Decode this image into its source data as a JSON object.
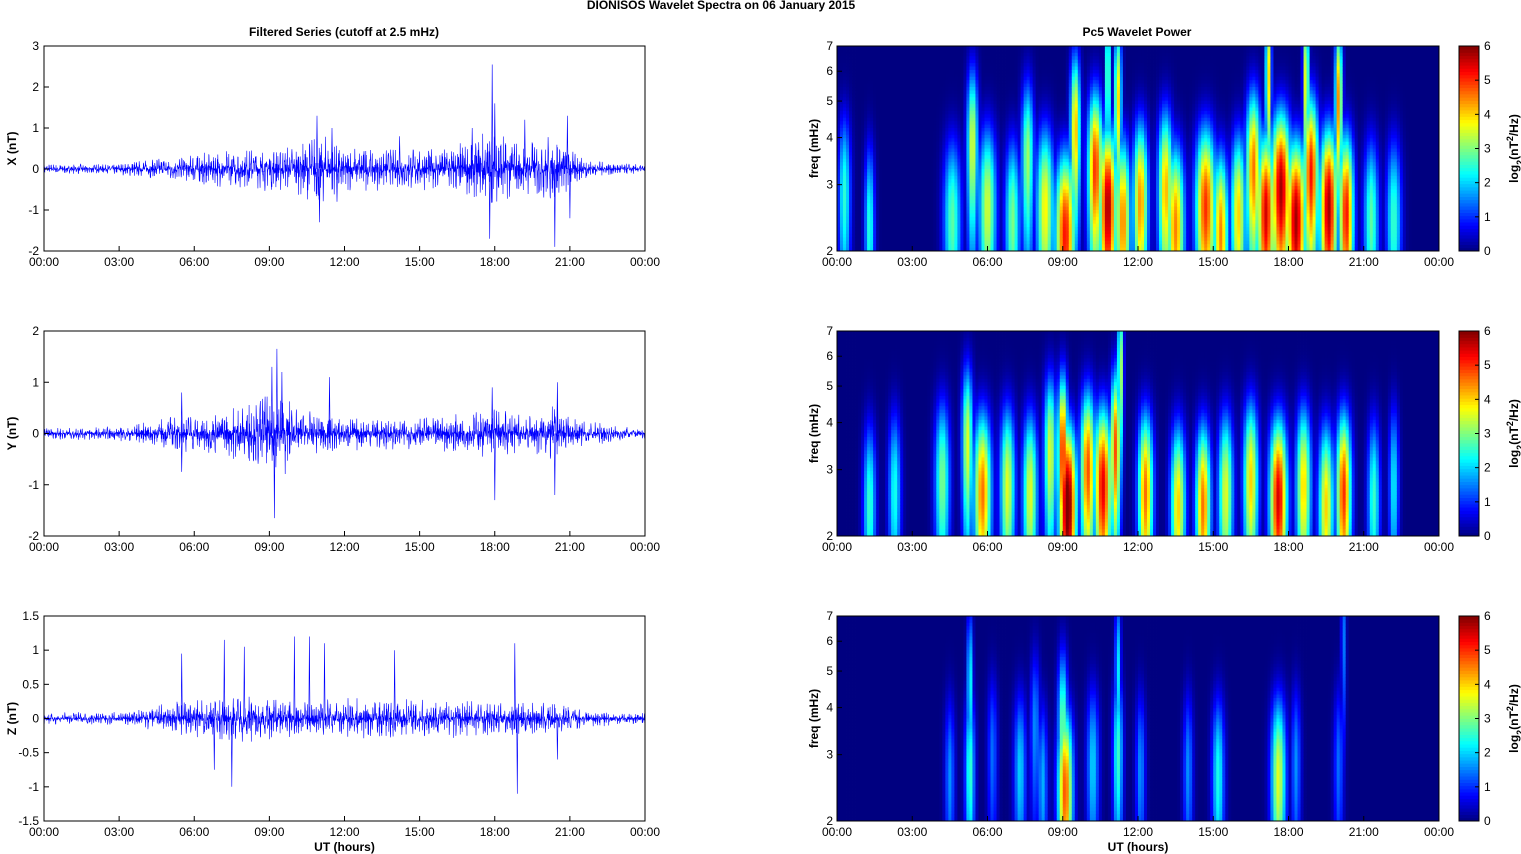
{
  "figure": {
    "title": "DIONISOS Wavelet Spectra on 06 January   2015"
  },
  "panel_titles": {
    "left": "Filtered Series (cutoff at 2.5 mHz)",
    "right": "Pc5 Wavelet Power"
  },
  "colors": {
    "trace": "#0000ff",
    "background_map": "#00008f"
  },
  "chart_data": [
    {
      "type": "line",
      "name": "x-series",
      "ylabel": "X (nT)",
      "xlabel": "",
      "ylim": [
        -2,
        3
      ],
      "yticks": [
        "-2",
        "-1",
        "0",
        "1",
        "2",
        "3"
      ],
      "xticks": [
        "00:00",
        "03:00",
        "06:00",
        "09:00",
        "12:00",
        "15:00",
        "18:00",
        "21:00",
        "00:00"
      ],
      "xlim_hours": [
        0,
        24
      ],
      "envelope": [
        [
          0,
          0.12
        ],
        [
          3,
          0.14
        ],
        [
          4,
          0.25
        ],
        [
          6,
          0.4
        ],
        [
          8,
          0.5
        ],
        [
          10,
          0.6
        ],
        [
          11,
          0.9
        ],
        [
          12,
          0.6
        ],
        [
          14,
          0.5
        ],
        [
          16,
          0.55
        ],
        [
          17,
          0.8
        ],
        [
          18,
          1.1
        ],
        [
          19,
          0.7
        ],
        [
          20.5,
          0.9
        ],
        [
          21,
          0.5
        ],
        [
          22,
          0.2
        ],
        [
          24,
          0.1
        ]
      ],
      "spikes": [
        [
          10.9,
          1.3
        ],
        [
          11.0,
          -1.3
        ],
        [
          11.5,
          1.0
        ],
        [
          11.7,
          -0.8
        ],
        [
          14.2,
          0.8
        ],
        [
          17.1,
          1.0
        ],
        [
          17.9,
          2.55
        ],
        [
          17.8,
          -1.7
        ],
        [
          18.0,
          1.6
        ],
        [
          19.2,
          1.2
        ],
        [
          20.4,
          -1.9
        ],
        [
          20.9,
          1.3
        ],
        [
          21.0,
          -1.2
        ]
      ]
    },
    {
      "type": "line",
      "name": "y-series",
      "ylabel": "Y (nT)",
      "xlabel": "",
      "ylim": [
        -2,
        2
      ],
      "yticks": [
        "-2",
        "-1",
        "0",
        "1",
        "2"
      ],
      "xticks": [
        "00:00",
        "03:00",
        "06:00",
        "09:00",
        "12:00",
        "15:00",
        "18:00",
        "21:00",
        "00:00"
      ],
      "xlim_hours": [
        0,
        24
      ],
      "envelope": [
        [
          0,
          0.12
        ],
        [
          3,
          0.15
        ],
        [
          4,
          0.22
        ],
        [
          5,
          0.35
        ],
        [
          7,
          0.45
        ],
        [
          8.5,
          0.7
        ],
        [
          9.3,
          1.1
        ],
        [
          10,
          0.5
        ],
        [
          12,
          0.35
        ],
        [
          15,
          0.32
        ],
        [
          17,
          0.4
        ],
        [
          18,
          0.55
        ],
        [
          19,
          0.4
        ],
        [
          20.5,
          0.6
        ],
        [
          21,
          0.3
        ],
        [
          24,
          0.1
        ]
      ],
      "spikes": [
        [
          9.3,
          1.65
        ],
        [
          9.2,
          -1.65
        ],
        [
          9.5,
          1.2
        ],
        [
          9.1,
          1.3
        ],
        [
          11.4,
          1.1
        ],
        [
          5.5,
          -0.75
        ],
        [
          5.5,
          0.8
        ],
        [
          18.0,
          -1.3
        ],
        [
          17.9,
          0.9
        ],
        [
          20.4,
          -1.2
        ],
        [
          20.5,
          1.0
        ]
      ]
    },
    {
      "type": "line",
      "name": "z-series",
      "ylabel": "Z (nT)",
      "xlabel": "UT (hours)",
      "ylim": [
        -1.5,
        1.5
      ],
      "yticks": [
        "-1.5",
        "-1",
        "-0.5",
        "0",
        "0.5",
        "1",
        "1.5"
      ],
      "xticks": [
        "00:00",
        "03:00",
        "06:00",
        "09:00",
        "12:00",
        "15:00",
        "18:00",
        "21:00",
        "00:00"
      ],
      "xlim_hours": [
        0,
        24
      ],
      "envelope": [
        [
          0,
          0.09
        ],
        [
          3,
          0.1
        ],
        [
          4,
          0.15
        ],
        [
          5.5,
          0.3
        ],
        [
          7,
          0.35
        ],
        [
          9,
          0.35
        ],
        [
          10,
          0.3
        ],
        [
          12,
          0.3
        ],
        [
          15,
          0.3
        ],
        [
          18,
          0.28
        ],
        [
          20,
          0.25
        ],
        [
          22,
          0.12
        ],
        [
          24,
          0.08
        ]
      ],
      "spikes": [
        [
          5.5,
          0.95
        ],
        [
          7.2,
          1.15
        ],
        [
          6.8,
          -0.75
        ],
        [
          7.5,
          -1.0
        ],
        [
          8.0,
          1.05
        ],
        [
          10.0,
          1.2
        ],
        [
          10.6,
          1.2
        ],
        [
          11.2,
          1.1
        ],
        [
          14.0,
          1.0
        ],
        [
          18.8,
          1.1
        ],
        [
          18.9,
          -1.1
        ],
        [
          20.5,
          -0.6
        ]
      ]
    },
    {
      "type": "heatmap",
      "name": "x-wavelet",
      "ylabel": "freq (mHz)",
      "xlabel": "",
      "ylim": [
        2,
        7
      ],
      "yscale": "log",
      "yticks": [
        "2",
        "3",
        "4",
        "5",
        "6",
        "7"
      ],
      "xticks": [
        "00:00",
        "03:00",
        "06:00",
        "09:00",
        "12:00",
        "15:00",
        "18:00",
        "21:00",
        "00:00"
      ],
      "xlim_hours": [
        0,
        24
      ],
      "colorbar_label": "log2(nT2/Hz)",
      "colorbar_ticks": [
        "0",
        "1",
        "2",
        "3",
        "4",
        "5",
        "6"
      ],
      "clim": [
        0,
        6
      ],
      "blobs": [
        [
          0.3,
          2.8,
          0.25,
          2.5
        ],
        [
          1.3,
          2.3,
          0.2,
          2.5
        ],
        [
          4.6,
          2.4,
          0.35,
          2.8
        ],
        [
          5.4,
          3.8,
          0.22,
          3.6
        ],
        [
          6.0,
          2.6,
          0.35,
          3.5
        ],
        [
          7.0,
          2.4,
          0.3,
          3.0
        ],
        [
          7.6,
          3.5,
          0.25,
          3.2
        ],
        [
          8.3,
          2.6,
          0.35,
          3.8
        ],
        [
          9.1,
          2.2,
          0.4,
          5.2
        ],
        [
          9.5,
          4.2,
          0.2,
          4.2
        ],
        [
          10.3,
          3.3,
          0.3,
          5.0
        ],
        [
          10.8,
          2.6,
          0.35,
          5.8
        ],
        [
          11.4,
          2.4,
          0.3,
          4.5
        ],
        [
          11.2,
          5.0,
          0.15,
          4.0
        ],
        [
          12.1,
          2.7,
          0.3,
          4.4
        ],
        [
          13.1,
          2.9,
          0.3,
          4.2
        ],
        [
          13.5,
          2.3,
          0.35,
          4.5
        ],
        [
          14.7,
          2.6,
          0.4,
          5.0
        ],
        [
          15.3,
          2.2,
          0.3,
          4.5
        ],
        [
          16.0,
          2.5,
          0.3,
          4.0
        ],
        [
          16.6,
          3.3,
          0.3,
          4.6
        ],
        [
          17.1,
          2.5,
          0.35,
          5.5
        ],
        [
          17.7,
          2.9,
          0.4,
          5.8
        ],
        [
          18.3,
          2.4,
          0.4,
          5.8
        ],
        [
          18.9,
          3.2,
          0.3,
          5.2
        ],
        [
          19.6,
          2.6,
          0.35,
          5.8
        ],
        [
          20.3,
          2.5,
          0.3,
          5.2
        ],
        [
          20.0,
          5.0,
          0.15,
          4.5
        ],
        [
          21.3,
          2.4,
          0.3,
          2.8
        ],
        [
          22.2,
          2.4,
          0.3,
          2.6
        ],
        [
          17.2,
          5.8,
          0.12,
          4.0
        ],
        [
          18.7,
          5.6,
          0.12,
          4.0
        ],
        [
          10.8,
          5.8,
          0.1,
          3.5
        ]
      ]
    },
    {
      "type": "heatmap",
      "name": "y-wavelet",
      "ylabel": "freq (mHz)",
      "xlabel": "",
      "ylim": [
        2,
        7
      ],
      "yscale": "log",
      "yticks": [
        "2",
        "3",
        "4",
        "5",
        "6",
        "7"
      ],
      "xticks": [
        "00:00",
        "03:00",
        "06:00",
        "09:00",
        "12:00",
        "15:00",
        "18:00",
        "21:00",
        "00:00"
      ],
      "xlim_hours": [
        0,
        24
      ],
      "colorbar_label": "log2(nT2/Hz)",
      "colorbar_ticks": [
        "0",
        "1",
        "2",
        "3",
        "4",
        "5",
        "6"
      ],
      "clim": [
        0,
        6
      ],
      "blobs": [
        [
          1.3,
          2.4,
          0.25,
          2.6
        ],
        [
          2.3,
          2.6,
          0.25,
          2.4
        ],
        [
          4.2,
          2.8,
          0.3,
          3.0
        ],
        [
          5.2,
          3.5,
          0.22,
          3.6
        ],
        [
          5.8,
          2.6,
          0.35,
          4.6
        ],
        [
          6.8,
          2.7,
          0.3,
          3.6
        ],
        [
          7.7,
          2.6,
          0.3,
          3.6
        ],
        [
          8.5,
          3.3,
          0.25,
          3.6
        ],
        [
          9.2,
          2.4,
          0.35,
          6.3
        ],
        [
          9.0,
          3.3,
          0.2,
          5.2
        ],
        [
          10.0,
          3.0,
          0.3,
          4.8
        ],
        [
          10.6,
          2.7,
          0.35,
          5.4
        ],
        [
          11.1,
          3.4,
          0.2,
          4.8
        ],
        [
          12.3,
          2.6,
          0.3,
          4.6
        ],
        [
          13.6,
          2.4,
          0.3,
          4.0
        ],
        [
          14.6,
          2.4,
          0.3,
          4.6
        ],
        [
          15.5,
          2.6,
          0.3,
          3.6
        ],
        [
          16.5,
          2.8,
          0.3,
          4.0
        ],
        [
          17.6,
          2.5,
          0.35,
          5.5
        ],
        [
          18.6,
          2.7,
          0.3,
          4.0
        ],
        [
          19.5,
          2.4,
          0.3,
          4.0
        ],
        [
          20.2,
          2.6,
          0.3,
          5.0
        ],
        [
          21.4,
          2.5,
          0.25,
          2.6
        ],
        [
          22.2,
          2.7,
          0.2,
          2.2
        ],
        [
          11.3,
          5.5,
          0.12,
          3.5
        ]
      ]
    },
    {
      "type": "heatmap",
      "name": "z-wavelet",
      "ylabel": "freq (mHz)",
      "xlabel": "UT (hours)",
      "ylim": [
        2,
        7
      ],
      "yscale": "log",
      "yticks": [
        "2",
        "3",
        "4",
        "5",
        "6",
        "7"
      ],
      "xticks": [
        "00:00",
        "03:00",
        "06:00",
        "09:00",
        "12:00",
        "15:00",
        "18:00",
        "21:00",
        "00:00"
      ],
      "xlim_hours": [
        0,
        24
      ],
      "colorbar_label": "log2(nT2/Hz)",
      "colorbar_ticks": [
        "0",
        "1",
        "2",
        "3",
        "4",
        "5",
        "6"
      ],
      "clim": [
        0,
        6
      ],
      "blobs": [
        [
          4.5,
          2.6,
          0.2,
          1.6
        ],
        [
          5.3,
          2.7,
          0.2,
          2.6
        ],
        [
          5.3,
          4.6,
          0.12,
          2.4
        ],
        [
          6.2,
          3.0,
          0.2,
          1.4
        ],
        [
          7.3,
          2.7,
          0.25,
          2.0
        ],
        [
          7.9,
          3.5,
          0.2,
          1.6
        ],
        [
          8.2,
          2.5,
          0.2,
          1.8
        ],
        [
          9.1,
          2.4,
          0.3,
          4.8
        ],
        [
          9.0,
          3.5,
          0.2,
          3.0
        ],
        [
          10.2,
          2.8,
          0.25,
          2.0
        ],
        [
          11.2,
          3.0,
          0.2,
          2.6
        ],
        [
          11.2,
          5.0,
          0.12,
          2.2
        ],
        [
          12.1,
          2.7,
          0.2,
          1.6
        ],
        [
          14.0,
          2.7,
          0.2,
          1.6
        ],
        [
          15.2,
          2.6,
          0.25,
          2.4
        ],
        [
          17.6,
          2.6,
          0.3,
          3.6
        ],
        [
          18.3,
          2.8,
          0.2,
          1.6
        ],
        [
          20.0,
          2.8,
          0.2,
          1.4
        ],
        [
          20.2,
          6.0,
          0.1,
          1.5
        ]
      ]
    }
  ]
}
